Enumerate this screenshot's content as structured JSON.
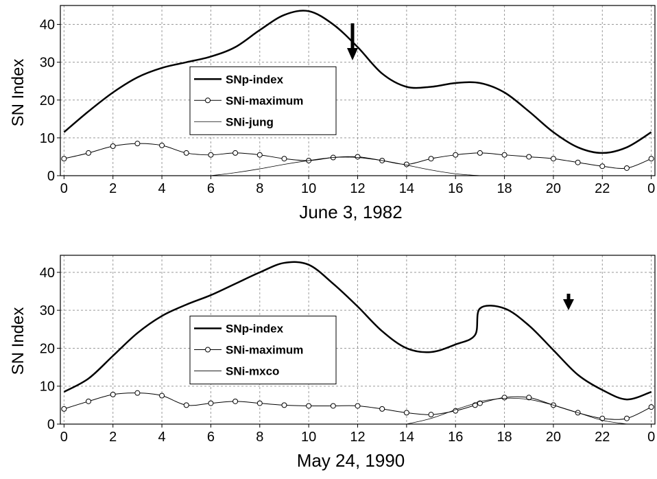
{
  "chart_data": [
    {
      "type": "line",
      "xlabel": "June 3, 1982",
      "ylabel": "SN Index",
      "x": [
        0,
        1,
        2,
        3,
        4,
        5,
        6,
        7,
        8,
        9,
        10,
        11,
        12,
        13,
        14,
        15,
        16,
        17,
        18,
        19,
        20,
        21,
        22,
        23,
        24
      ],
      "xlim": [
        -0.15,
        24.15
      ],
      "xticks": [
        0,
        2,
        4,
        6,
        8,
        10,
        12,
        14,
        16,
        18,
        20,
        22,
        {
          "value": 24,
          "label": "0"
        }
      ],
      "ylim": [
        0,
        45
      ],
      "yticks": [
        0,
        10,
        20,
        30,
        40
      ],
      "grid": true,
      "legend_loc": "center left",
      "series": [
        {
          "name": "SNp-index",
          "color": "#000000",
          "width": 2.5,
          "marker": "none",
          "values": [
            11.5,
            17,
            22,
            26,
            28.5,
            30,
            31.5,
            34,
            38.5,
            42.5,
            43.5,
            40,
            34,
            27,
            23.5,
            23.5,
            24.5,
            24.5,
            22,
            17,
            11.5,
            7.5,
            6,
            7.5,
            11.5
          ]
        },
        {
          "name": "SNi-maximum",
          "color": "#000000",
          "width": 1,
          "marker": "circle",
          "values": [
            4.5,
            6,
            7.8,
            8.5,
            8,
            6,
            5.5,
            6,
            5.5,
            4.5,
            4,
            4.8,
            5,
            4,
            3,
            4.5,
            5.5,
            6,
            5.5,
            5,
            4.5,
            3.5,
            2.5,
            2,
            4.5
          ]
        },
        {
          "name": "SNi-jung",
          "color": "#000000",
          "width": 0.8,
          "marker": "none",
          "values": [
            null,
            null,
            null,
            null,
            null,
            null,
            0,
            0.8,
            1.8,
            3,
            4,
            4.8,
            4.8,
            4,
            2.8,
            1.5,
            0.5,
            0,
            null,
            null,
            null,
            null,
            null,
            null,
            null
          ]
        }
      ]
    },
    {
      "type": "line",
      "xlabel": "May 24, 1990",
      "ylabel": "SN Index",
      "x": [
        0,
        1,
        2,
        3,
        4,
        5,
        6,
        7,
        8,
        9,
        10,
        11,
        12,
        13,
        14,
        15,
        16,
        16.8,
        17,
        18,
        19,
        20,
        21,
        22,
        23,
        24
      ],
      "xlim": [
        -0.15,
        24.15
      ],
      "xticks": [
        0,
        2,
        4,
        6,
        8,
        10,
        12,
        14,
        16,
        18,
        20,
        22,
        {
          "value": 24,
          "label": "0"
        }
      ],
      "ylim": [
        0,
        44.5
      ],
      "yticks": [
        0,
        10,
        20,
        30,
        40
      ],
      "grid": true,
      "legend_loc": "center left",
      "series": [
        {
          "name": "SNp-index",
          "color": "#000000",
          "width": 2.5,
          "marker": "none",
          "values": [
            8.5,
            12,
            18,
            24,
            28.5,
            31.5,
            34,
            37,
            40,
            42.5,
            42,
            37,
            31,
            24.5,
            20,
            19,
            21,
            23.5,
            30.5,
            30.5,
            26,
            19.5,
            13,
            9,
            6.5,
            8.5
          ]
        },
        {
          "name": "SNi-maximum",
          "color": "#000000",
          "width": 1,
          "marker": "circle",
          "values": [
            4,
            6,
            7.8,
            8.2,
            7.5,
            5,
            5.5,
            6,
            5.5,
            5,
            4.8,
            4.8,
            4.8,
            4,
            3,
            2.5,
            3.5,
            5,
            5.5,
            7,
            7,
            5,
            3,
            1.5,
            1.5,
            4.5
          ]
        },
        {
          "name": "SNi-mxco",
          "color": "#000000",
          "width": 0.8,
          "marker": "none",
          "values": [
            null,
            null,
            null,
            null,
            null,
            null,
            null,
            null,
            null,
            null,
            null,
            null,
            null,
            null,
            0,
            1.5,
            3.8,
            5.5,
            6,
            6.8,
            6.5,
            5,
            3,
            1,
            0,
            null
          ]
        }
      ]
    }
  ]
}
